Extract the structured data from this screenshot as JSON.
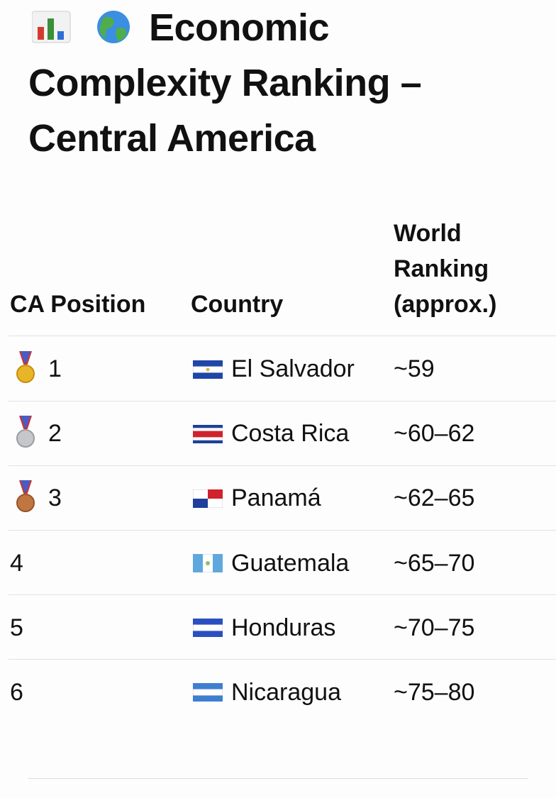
{
  "header": {
    "title": "Economic Complexity Ranking – Central America"
  },
  "table": {
    "columns": [
      "CA Position",
      "Country",
      "World Ranking (approx.)"
    ],
    "rows": [
      [
        "1",
        "El Salvador",
        "~59"
      ],
      [
        "2",
        "Costa Rica",
        "~60–62"
      ],
      [
        "3",
        "Panamá",
        "~62–65"
      ],
      [
        "4",
        "Guatemala",
        "~65–70"
      ],
      [
        "5",
        "Honduras",
        "~70–75"
      ],
      [
        "6",
        "Nicaragua",
        "~75–80"
      ]
    ]
  }
}
